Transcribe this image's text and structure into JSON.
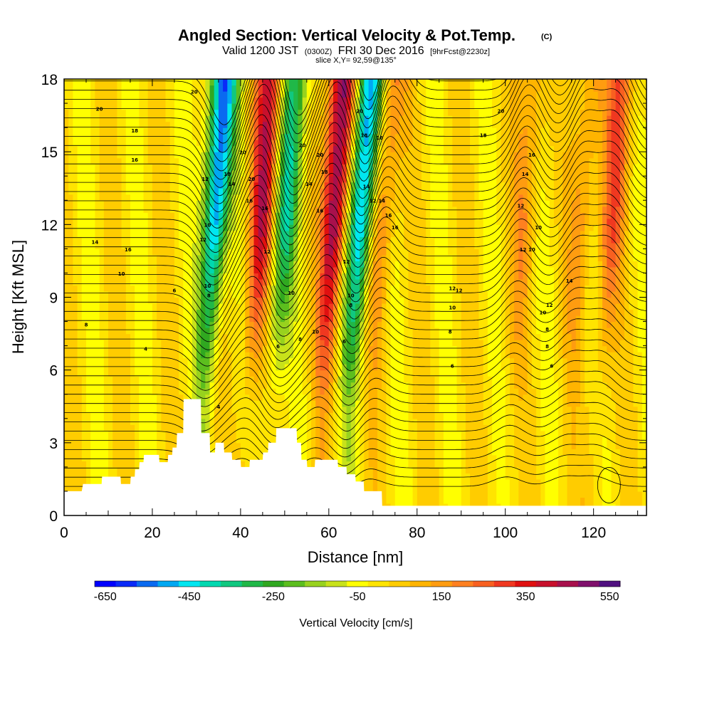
{
  "chart_data": {
    "type": "heatmap",
    "title": "Angled Section: Vertical Velocity & Pot.Temp.",
    "title_unit": "(C)",
    "subtitle": {
      "valid": "Valid 1200 JST",
      "zulu": "(0300Z)",
      "date": "FRI 30 Dec 2016",
      "forecast": "[9hrFcst@2230z]"
    },
    "slice_label": "slice X,Y= 92,59@135°",
    "xlabel": "Distance [nm]",
    "ylabel": "Height [Kft MSL]",
    "xlim": [
      0,
      132
    ],
    "ylim": [
      0,
      18
    ],
    "x_ticks": [
      "0",
      "20",
      "40",
      "60",
      "80",
      "100",
      "120"
    ],
    "y_ticks": [
      "0",
      "3",
      "6",
      "9",
      "12",
      "15",
      "18"
    ],
    "colorbar": {
      "label": "Vertical Velocity [cm/s]",
      "tick_labels": [
        "-650",
        "-450",
        "-250",
        "-50",
        "150",
        "350",
        "550"
      ],
      "colors": [
        "#0000ff",
        "#0a2af8",
        "#0a6af0",
        "#00a8f2",
        "#00e6f0",
        "#00d8b0",
        "#10c880",
        "#20b848",
        "#30a820",
        "#5cbe1e",
        "#98d21e",
        "#c8e21a",
        "#ffff00",
        "#ffe400",
        "#ffcc00",
        "#ffb400",
        "#ff9c10",
        "#ff8020",
        "#f86020",
        "#f03820",
        "#e01010",
        "#c8102c",
        "#a8104c",
        "#80106c",
        "#501080"
      ]
    },
    "velocity_features": [
      {
        "center_km": 31,
        "sign": "negative",
        "min_cm_s": -550
      },
      {
        "center_km": 41.5,
        "sign": "positive",
        "max_cm_s": 400
      },
      {
        "center_km": 47,
        "sign": "negative",
        "min_cm_s": -350
      },
      {
        "center_km": 58,
        "sign": "positive",
        "max_cm_s": 520
      },
      {
        "center_km": 64,
        "sign": "negative",
        "min_cm_s": -550
      },
      {
        "center_km": 69,
        "sign": "positive",
        "max_cm_s": 200
      },
      {
        "center_km": 101,
        "sign": "positive",
        "max_cm_s": 150
      },
      {
        "center_km": 114,
        "sign": "positive",
        "max_cm_s": 150
      },
      {
        "center_km": 121,
        "sign": "positive",
        "max_cm_s": 250
      }
    ],
    "contour_labels": [
      {
        "text": "20",
        "x": 29.5,
        "y": 17.4
      },
      {
        "text": "20",
        "x": 8,
        "y": 16.7
      },
      {
        "text": "18",
        "x": 16,
        "y": 15.8
      },
      {
        "text": "16",
        "x": 16,
        "y": 14.6
      },
      {
        "text": "20",
        "x": 40.5,
        "y": 14.9
      },
      {
        "text": "20",
        "x": 42.5,
        "y": 13.8
      },
      {
        "text": "18",
        "x": 37,
        "y": 14.0
      },
      {
        "text": "14",
        "x": 38,
        "y": 13.6
      },
      {
        "text": "16",
        "x": 42,
        "y": 12.9
      },
      {
        "text": "16",
        "x": 45.5,
        "y": 12.6
      },
      {
        "text": "20",
        "x": 54,
        "y": 15.2
      },
      {
        "text": "20",
        "x": 58,
        "y": 14.8
      },
      {
        "text": "18",
        "x": 59,
        "y": 14.1
      },
      {
        "text": "14",
        "x": 55.5,
        "y": 13.6
      },
      {
        "text": "16",
        "x": 58,
        "y": 12.5
      },
      {
        "text": "20",
        "x": 67,
        "y": 16.6
      },
      {
        "text": "18",
        "x": 68,
        "y": 15.6
      },
      {
        "text": "16",
        "x": 71.5,
        "y": 15.5
      },
      {
        "text": "14",
        "x": 68.5,
        "y": 13.5
      },
      {
        "text": "12",
        "x": 70,
        "y": 12.9
      },
      {
        "text": "14",
        "x": 72,
        "y": 12.9
      },
      {
        "text": "16",
        "x": 73.5,
        "y": 12.3
      },
      {
        "text": "16",
        "x": 75,
        "y": 11.8
      },
      {
        "text": "20",
        "x": 99,
        "y": 16.6
      },
      {
        "text": "18",
        "x": 95,
        "y": 15.6
      },
      {
        "text": "16",
        "x": 106,
        "y": 14.8
      },
      {
        "text": "14",
        "x": 104.5,
        "y": 14.0
      },
      {
        "text": "12",
        "x": 103.5,
        "y": 12.7
      },
      {
        "text": "10",
        "x": 107.5,
        "y": 11.8
      },
      {
        "text": "12",
        "x": 104,
        "y": 10.9
      },
      {
        "text": "10",
        "x": 106,
        "y": 10.9
      },
      {
        "text": "14",
        "x": 7,
        "y": 11.2
      },
      {
        "text": "16",
        "x": 14.5,
        "y": 10.9
      },
      {
        "text": "10",
        "x": 13,
        "y": 9.9
      },
      {
        "text": "6",
        "x": 25,
        "y": 9.2
      },
      {
        "text": "8",
        "x": 5,
        "y": 7.8
      },
      {
        "text": "4",
        "x": 18.5,
        "y": 6.8
      },
      {
        "text": "12",
        "x": 32,
        "y": 13.8
      },
      {
        "text": "10",
        "x": 32.5,
        "y": 11.9
      },
      {
        "text": "12",
        "x": 31.5,
        "y": 11.3
      },
      {
        "text": "10",
        "x": 32.5,
        "y": 9.4
      },
      {
        "text": "8",
        "x": 32.8,
        "y": 9.0
      },
      {
        "text": "4",
        "x": 35,
        "y": 4.4
      },
      {
        "text": "12",
        "x": 46,
        "y": 10.8
      },
      {
        "text": "10",
        "x": 51.5,
        "y": 9.1
      },
      {
        "text": "8",
        "x": 53.5,
        "y": 7.2
      },
      {
        "text": "6",
        "x": 48.5,
        "y": 6.9
      },
      {
        "text": "10",
        "x": 57,
        "y": 7.5
      },
      {
        "text": "12",
        "x": 64,
        "y": 10.4
      },
      {
        "text": "10",
        "x": 65,
        "y": 9.0
      },
      {
        "text": "8",
        "x": 65,
        "y": 8.6
      },
      {
        "text": "6",
        "x": 63.5,
        "y": 7.1
      },
      {
        "text": "12",
        "x": 88,
        "y": 9.3
      },
      {
        "text": "10",
        "x": 88,
        "y": 8.5
      },
      {
        "text": "8",
        "x": 87.5,
        "y": 7.5
      },
      {
        "text": "6",
        "x": 88,
        "y": 6.1
      },
      {
        "text": "12",
        "x": 89.5,
        "y": 9.2
      },
      {
        "text": "8",
        "x": 109.5,
        "y": 7.6
      },
      {
        "text": "10",
        "x": 108.5,
        "y": 8.3
      },
      {
        "text": "12",
        "x": 110,
        "y": 8.6
      },
      {
        "text": "8",
        "x": 109.5,
        "y": 6.9
      },
      {
        "text": "6",
        "x": 110.5,
        "y": 6.1
      },
      {
        "text": "14",
        "x": 114.5,
        "y": 9.6
      }
    ],
    "terrain_steps": [
      [
        0,
        1.0
      ],
      [
        4,
        1.0
      ],
      [
        4.3,
        1.3
      ],
      [
        8.5,
        1.3
      ],
      [
        8.6,
        1.6
      ],
      [
        12.8,
        1.6
      ],
      [
        12.9,
        1.3
      ],
      [
        15,
        1.3
      ],
      [
        15.1,
        1.6
      ],
      [
        16,
        1.6
      ],
      [
        16.1,
        1.9
      ],
      [
        17,
        1.9
      ],
      [
        17.1,
        2.2
      ],
      [
        18,
        2.2
      ],
      [
        18.1,
        2.5
      ],
      [
        21.5,
        2.5
      ],
      [
        21.6,
        2.2
      ],
      [
        23.5,
        2.2
      ],
      [
        23.6,
        2.5
      ],
      [
        24.5,
        2.5
      ],
      [
        24.6,
        2.8
      ],
      [
        25.5,
        2.8
      ],
      [
        25.6,
        3.4
      ],
      [
        27,
        3.4
      ],
      [
        27.1,
        4.8
      ],
      [
        31,
        4.8
      ],
      [
        31.1,
        3.4
      ],
      [
        33,
        3.4
      ],
      [
        33.1,
        2.6
      ],
      [
        34.2,
        2.6
      ],
      [
        34.3,
        3.0
      ],
      [
        36.2,
        3.0
      ],
      [
        36.3,
        2.6
      ],
      [
        38,
        2.6
      ],
      [
        38.1,
        2.3
      ],
      [
        40,
        2.3
      ],
      [
        40.1,
        2.0
      ],
      [
        42,
        2.0
      ],
      [
        42.1,
        2.3
      ],
      [
        45,
        2.3
      ],
      [
        45.1,
        2.6
      ],
      [
        46.2,
        2.6
      ],
      [
        46.3,
        3.0
      ],
      [
        48,
        3.0
      ],
      [
        48.1,
        3.6
      ],
      [
        52.7,
        3.6
      ],
      [
        52.8,
        3.0
      ],
      [
        53.7,
        3.0
      ],
      [
        53.8,
        2.3
      ],
      [
        55,
        2.3
      ],
      [
        55.1,
        2.0
      ],
      [
        56.8,
        2.0
      ],
      [
        56.9,
        2.3
      ],
      [
        62,
        2.3
      ],
      [
        62.1,
        2.0
      ],
      [
        64,
        2.0
      ],
      [
        64.1,
        1.7
      ],
      [
        66,
        1.7
      ],
      [
        66.1,
        1.4
      ],
      [
        67.9,
        1.4
      ],
      [
        68,
        1.0
      ],
      [
        72,
        1.0
      ],
      [
        72.1,
        0.4
      ],
      [
        132,
        0.4
      ]
    ]
  }
}
